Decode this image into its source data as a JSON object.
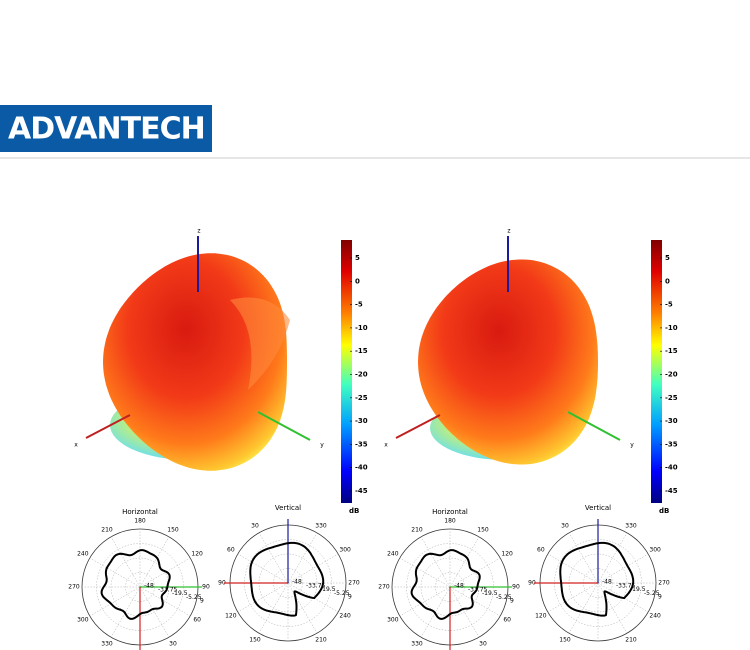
{
  "logo": "ADVANTECH",
  "panels": [
    {
      "axes": {
        "x": "x",
        "y": "y",
        "z": "z"
      },
      "colorbar": {
        "ticks": [
          5,
          0,
          -5,
          -10,
          -15,
          -20,
          -25,
          -30,
          -35,
          -40,
          -45
        ],
        "unit": "dB"
      },
      "polar": [
        {
          "title": "Horizontal",
          "angles": [
            180,
            150,
            120,
            90,
            60,
            30,
            330,
            300,
            270,
            240,
            210
          ],
          "rings": [
            -48,
            -33.75,
            -19.5,
            -5.25,
            9
          ]
        },
        {
          "title": "Vertical",
          "angles": [
            330,
            300,
            270,
            240,
            210,
            150,
            120,
            90,
            60,
            30
          ],
          "rings": [
            -48,
            -33.75,
            -19.5,
            -5.25,
            9
          ]
        }
      ]
    },
    {
      "axes": {
        "x": "x",
        "y": "y",
        "z": "z"
      },
      "colorbar": {
        "ticks": [
          5,
          0,
          -5,
          -10,
          -15,
          -20,
          -25,
          -30,
          -35,
          -40,
          -45
        ],
        "unit": "dB"
      },
      "polar": [
        {
          "title": "Horizontal",
          "angles": [
            180,
            150,
            120,
            90,
            60,
            30,
            330,
            300,
            270,
            240,
            210
          ],
          "rings": [
            -48,
            -33.75,
            -19.5,
            -5.25,
            9
          ]
        },
        {
          "title": "Vertical",
          "angles": [
            330,
            300,
            270,
            240,
            210,
            150,
            120,
            90,
            60,
            30
          ],
          "rings": [
            -48,
            -33.75,
            -19.5,
            -5.25,
            9
          ]
        }
      ]
    }
  ]
}
